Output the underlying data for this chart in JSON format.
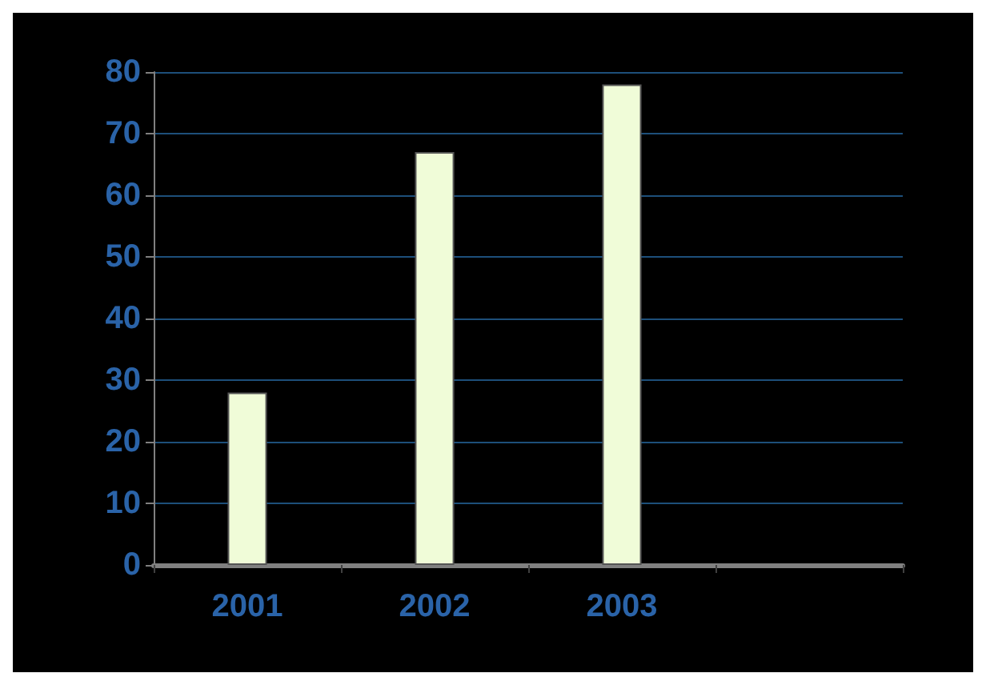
{
  "chart_data": {
    "type": "bar",
    "categories": [
      "2001",
      "2002",
      "2003",
      null
    ],
    "values": [
      28,
      67,
      78,
      null
    ],
    "color": "#f0fcd8",
    "ylim": [
      0,
      80
    ],
    "yticks": [
      0,
      10,
      20,
      30,
      40,
      50,
      60,
      70,
      80
    ],
    "grid": "y"
  }
}
